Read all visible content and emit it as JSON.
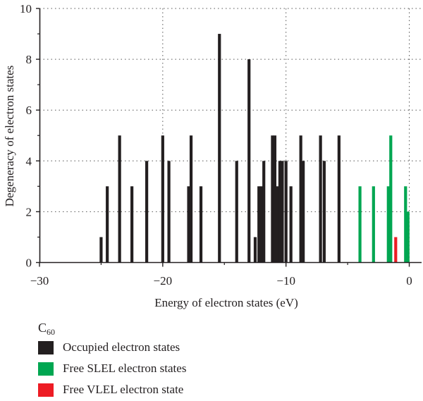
{
  "chart_data": {
    "type": "bar",
    "xlabel": "Energy of electron states (eV)",
    "ylabel": "Degeneracy of electron states",
    "xlim": [
      -30,
      1
    ],
    "ylim": [
      0,
      10
    ],
    "x_ticks": [
      -30,
      -20,
      -10,
      0
    ],
    "x_tick_labels": [
      "−30",
      "−20",
      "−10",
      "0"
    ],
    "y_ticks": [
      0,
      2,
      4,
      6,
      8,
      10
    ],
    "y_tick_labels": [
      "0",
      "2",
      "4",
      "6",
      "8",
      "10"
    ],
    "grid": true,
    "legend_title_main": "C",
    "legend_title_sub": "60",
    "legend_position": "bottom-left, below plot",
    "series": [
      {
        "name": "Occupied electron states",
        "color": "#231f20",
        "x": [
          -25.0,
          -24.5,
          -23.5,
          -22.5,
          -21.3,
          -20.0,
          -19.5,
          -17.9,
          -17.7,
          -16.9,
          -15.4,
          -14.0,
          -13.0,
          -12.5,
          -12.2,
          -12.0,
          -11.8,
          -11.1,
          -10.9,
          -10.7,
          -10.5,
          -10.3,
          -10.0,
          -9.6,
          -8.8,
          -8.6,
          -7.2,
          -6.9,
          -5.7
        ],
        "values": [
          1,
          3,
          5,
          3,
          4,
          5,
          4,
          3,
          5,
          3,
          9,
          4,
          8,
          1,
          3,
          3,
          4,
          5,
          5,
          3,
          4,
          4,
          4,
          3,
          5,
          4,
          5,
          4,
          5
        ]
      },
      {
        "name": "Free SLEL electron states",
        "color": "#00a651",
        "x": [
          -4.0,
          -2.9,
          -1.7,
          -1.5,
          -0.3,
          -0.1
        ],
        "values": [
          3,
          3,
          3,
          5,
          3,
          2
        ]
      },
      {
        "name": "Free VLEL electron state",
        "color": "#ed1c24",
        "x": [
          -1.1
        ],
        "values": [
          1
        ]
      }
    ]
  }
}
